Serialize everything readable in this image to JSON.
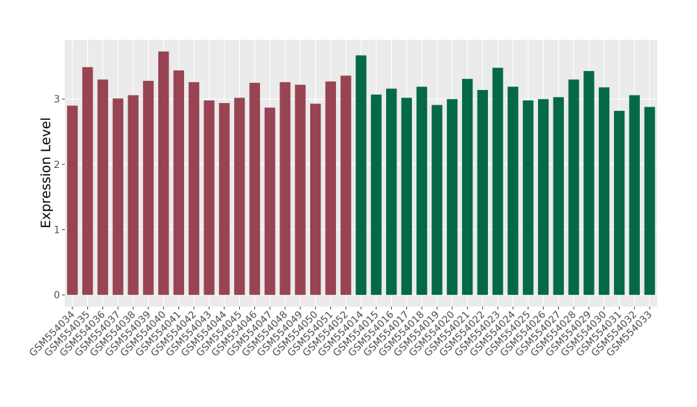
{
  "chart_data": {
    "type": "bar",
    "y_label": "Expression Level",
    "categories": [
      "GSM554034",
      "GSM554035",
      "GSM554036",
      "GSM554037",
      "GSM554038",
      "GSM554039",
      "GSM554040",
      "GSM554041",
      "GSM554042",
      "GSM554043",
      "GSM554044",
      "GSM554045",
      "GSM554046",
      "GSM554047",
      "GSM554048",
      "GSM554049",
      "GSM554050",
      "GSM554051",
      "GSM554052",
      "GSM554014",
      "GSM554015",
      "GSM554016",
      "GSM554017",
      "GSM554018",
      "GSM554019",
      "GSM554020",
      "GSM554021",
      "GSM554022",
      "GSM554023",
      "GSM554024",
      "GSM554025",
      "GSM554026",
      "GSM554027",
      "GSM554028",
      "GSM554029",
      "GSM554030",
      "GSM554031",
      "GSM554032",
      "GSM554033"
    ],
    "values": [
      2.9,
      3.49,
      3.3,
      3.01,
      3.06,
      3.28,
      3.73,
      3.44,
      3.26,
      2.98,
      2.94,
      3.02,
      3.25,
      2.87,
      3.26,
      3.22,
      2.93,
      3.27,
      3.36,
      3.67,
      3.07,
      3.16,
      3.02,
      3.19,
      2.91,
      3.0,
      3.31,
      3.14,
      3.48,
      3.19,
      2.98,
      3.0,
      3.03,
      3.3,
      3.43,
      3.18,
      2.82,
      3.06,
      2.88
    ],
    "colors": [
      "#984452",
      "#984452",
      "#984452",
      "#984452",
      "#984452",
      "#984452",
      "#984452",
      "#984452",
      "#984452",
      "#984452",
      "#984452",
      "#984452",
      "#984452",
      "#984452",
      "#984452",
      "#984452",
      "#984452",
      "#984452",
      "#984452",
      "#046a46",
      "#046a46",
      "#046a46",
      "#046a46",
      "#046a46",
      "#046a46",
      "#046a46",
      "#046a46",
      "#046a46",
      "#046a46",
      "#046a46",
      "#046a46",
      "#046a46",
      "#046a46",
      "#046a46",
      "#046a46",
      "#046a46",
      "#046a46",
      "#046a46",
      "#046a46"
    ],
    "ylim": [
      -0.18,
      3.91
    ],
    "yticks": [
      0,
      1,
      2,
      3
    ],
    "grid": true
  }
}
